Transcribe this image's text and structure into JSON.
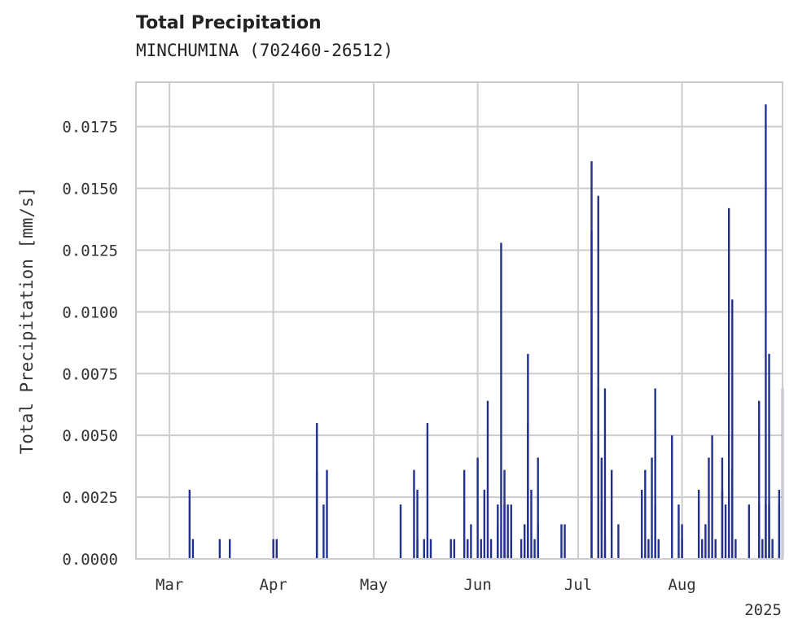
{
  "chart_data": {
    "type": "bar",
    "title": "Total Precipitation",
    "subtitle": "MINCHUMINA (702460-26512)",
    "ylabel": "Total Precipitation [mm/s]",
    "xlabel": "",
    "year_label": "2025",
    "xlim": [
      "2025-02-19",
      "2025-08-31"
    ],
    "ylim": [
      0,
      0.0193
    ],
    "grid": true,
    "legend": "none",
    "bar_color": "#22318f",
    "x_ticks": [
      {
        "date": "2025-03-01",
        "label": "Mar"
      },
      {
        "date": "2025-04-01",
        "label": "Apr"
      },
      {
        "date": "2025-05-01",
        "label": "May"
      },
      {
        "date": "2025-06-01",
        "label": "Jun"
      },
      {
        "date": "2025-07-01",
        "label": "Jul"
      },
      {
        "date": "2025-08-01",
        "label": "Aug"
      }
    ],
    "y_ticks": [
      {
        "value": 0,
        "label": "0.0000"
      },
      {
        "value": 0.0025,
        "label": "0.0025"
      },
      {
        "value": 0.005,
        "label": "0.0050"
      },
      {
        "value": 0.0075,
        "label": "0.0075"
      },
      {
        "value": 0.01,
        "label": "0.0100"
      },
      {
        "value": 0.0125,
        "label": "0.0125"
      },
      {
        "value": 0.015,
        "label": "0.0150"
      },
      {
        "value": 0.0175,
        "label": "0.0175"
      }
    ],
    "points": [
      [
        "2025-03-07",
        0.0028
      ],
      [
        "2025-03-08",
        0.0008
      ],
      [
        "2025-03-16",
        0.0008
      ],
      [
        "2025-03-19",
        0.0008
      ],
      [
        "2025-04-01",
        0.0008
      ],
      [
        "2025-04-02",
        0.0008
      ],
      [
        "2025-04-14",
        0.0036
      ],
      [
        "2025-04-14",
        0.0055
      ],
      [
        "2025-04-16",
        0.0022
      ],
      [
        "2025-04-17",
        0.0036
      ],
      [
        "2025-05-09",
        0.0022
      ],
      [
        "2025-05-13",
        0.0036
      ],
      [
        "2025-05-14",
        0.0028
      ],
      [
        "2025-05-14",
        0.0008
      ],
      [
        "2025-05-16",
        0.0008
      ],
      [
        "2025-05-17",
        0.0055
      ],
      [
        "2025-05-18",
        0.0008
      ],
      [
        "2025-05-24",
        0.0008
      ],
      [
        "2025-05-25",
        0.0008
      ],
      [
        "2025-05-28",
        0.0036
      ],
      [
        "2025-05-29",
        0.0008
      ],
      [
        "2025-05-30",
        0.0014
      ],
      [
        "2025-06-01",
        0.0041
      ],
      [
        "2025-06-02",
        0.0008
      ],
      [
        "2025-06-03",
        0.0028
      ],
      [
        "2025-06-04",
        0.0064
      ],
      [
        "2025-06-05",
        0.0008
      ],
      [
        "2025-06-07",
        0.0022
      ],
      [
        "2025-06-07",
        0.0014
      ],
      [
        "2025-06-08",
        0.0128
      ],
      [
        "2025-06-09",
        0.0036
      ],
      [
        "2025-06-09",
        0.0022
      ],
      [
        "2025-06-10",
        0.0022
      ],
      [
        "2025-06-11",
        0.0022
      ],
      [
        "2025-06-11",
        0.0008
      ],
      [
        "2025-06-14",
        0.0008
      ],
      [
        "2025-06-15",
        0.0014
      ],
      [
        "2025-06-16",
        0.0083
      ],
      [
        "2025-06-16",
        0.0055
      ],
      [
        "2025-06-17",
        0.0028
      ],
      [
        "2025-06-18",
        0.0008
      ],
      [
        "2025-06-19",
        0.0041
      ],
      [
        "2025-06-19",
        0.0014
      ],
      [
        "2025-06-26",
        0.0014
      ],
      [
        "2025-06-27",
        0.0014
      ],
      [
        "2025-07-05",
        0.0161
      ],
      [
        "2025-07-05",
        0.0133
      ],
      [
        "2025-07-07",
        0.0069
      ],
      [
        "2025-07-07",
        0.0147
      ],
      [
        "2025-07-08",
        0.0041
      ],
      [
        "2025-07-09",
        0.0069
      ],
      [
        "2025-07-09",
        0.0008
      ],
      [
        "2025-07-11",
        0.0036
      ],
      [
        "2025-07-13",
        0.0014
      ],
      [
        "2025-07-20",
        0.0028
      ],
      [
        "2025-07-21",
        0.0036
      ],
      [
        "2025-07-22",
        0.0008
      ],
      [
        "2025-07-23",
        0.0041
      ],
      [
        "2025-07-24",
        0.0069
      ],
      [
        "2025-07-24",
        0.0022
      ],
      [
        "2025-07-25",
        0.0008
      ],
      [
        "2025-07-29",
        0.005
      ],
      [
        "2025-07-31",
        0.0022
      ],
      [
        "2025-08-01",
        0.0014
      ],
      [
        "2025-08-01",
        0.0008
      ],
      [
        "2025-08-06",
        0.0028
      ],
      [
        "2025-08-07",
        0.0008
      ],
      [
        "2025-08-08",
        0.0014
      ],
      [
        "2025-08-09",
        0.0041
      ],
      [
        "2025-08-10",
        0.005
      ],
      [
        "2025-08-11",
        0.0008
      ],
      [
        "2025-08-13",
        0.0028
      ],
      [
        "2025-08-13",
        0.0041
      ],
      [
        "2025-08-14",
        0.0022
      ],
      [
        "2025-08-15",
        0.0028
      ],
      [
        "2025-08-15",
        0.0142
      ],
      [
        "2025-08-16",
        0.0105
      ],
      [
        "2025-08-16",
        0.0036
      ],
      [
        "2025-08-17",
        0.0008
      ],
      [
        "2025-08-21",
        0.0022
      ],
      [
        "2025-08-24",
        0.0064
      ],
      [
        "2025-08-24",
        0.0022
      ],
      [
        "2025-08-25",
        0.0008
      ],
      [
        "2025-08-26",
        0.0184
      ],
      [
        "2025-08-26",
        0.0022
      ],
      [
        "2025-08-27",
        0.0083
      ],
      [
        "2025-08-27",
        0.0022
      ],
      [
        "2025-08-28",
        0.0008
      ],
      [
        "2025-08-30",
        0.0022
      ],
      [
        "2025-08-30",
        0.0028
      ],
      [
        "2025-08-31",
        0.0069
      ]
    ]
  }
}
